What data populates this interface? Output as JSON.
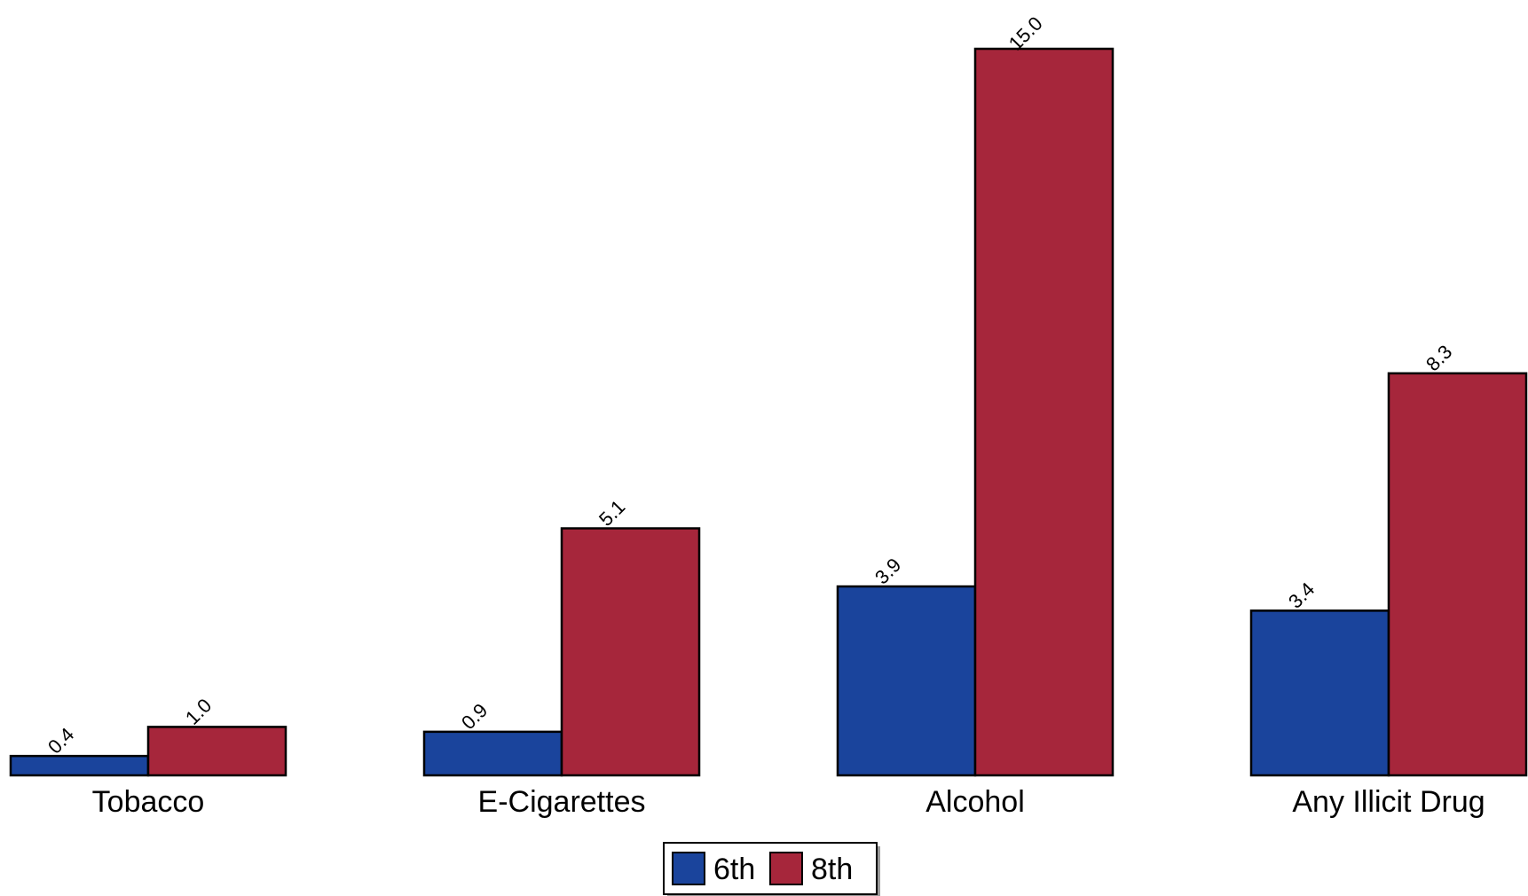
{
  "chart_data": {
    "type": "bar",
    "categories": [
      "Tobacco",
      "E-Cigarettes",
      "Alcohol",
      "Any Illicit Drug"
    ],
    "series": [
      {
        "name": "6th",
        "values": [
          0.4,
          0.9,
          3.9,
          3.4
        ],
        "color": "#1a449c"
      },
      {
        "name": "8th",
        "values": [
          1.0,
          5.1,
          15.0,
          8.3
        ],
        "color": "#a6263b"
      }
    ],
    "value_labels": [
      [
        "0.4",
        "0.9",
        "3.9",
        "3.4"
      ],
      [
        "1.0",
        "5.1",
        "15.0",
        "8.3"
      ]
    ],
    "ylim": [
      0,
      15.0
    ],
    "grid": false,
    "legend_position": "bottom-center",
    "title": "",
    "xlabel": "",
    "ylabel": ""
  }
}
